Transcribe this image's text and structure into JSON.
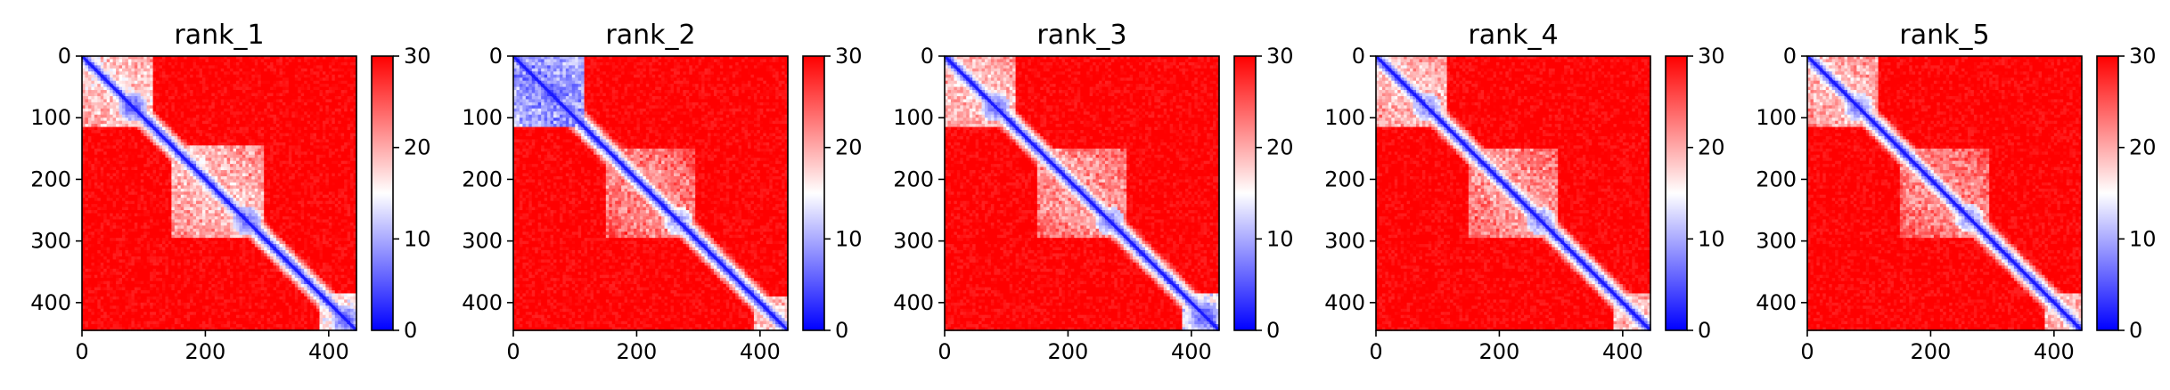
{
  "chart_data": [
    {
      "type": "heatmap",
      "title": "rank_1",
      "xlim": [
        0,
        445
      ],
      "ylim": [
        445,
        0
      ],
      "xticks": [
        "0",
        "200",
        "400"
      ],
      "yticks": [
        "0",
        "100",
        "200",
        "300",
        "400"
      ],
      "colorbar": {
        "min": 0,
        "max": 30,
        "ticks": [
          "0",
          "10",
          "20",
          "30"
        ],
        "colormap": "bwr"
      },
      "blocks": [
        [
          0,
          110,
          14
        ],
        [
          145,
          290,
          15
        ],
        [
          385,
          445,
          12
        ]
      ],
      "hotspots": [
        [
          80,
          80,
          4
        ],
        [
          265,
          265,
          5
        ],
        [
          425,
          425,
          4
        ]
      ]
    },
    {
      "type": "heatmap",
      "title": "rank_2",
      "xlim": [
        0,
        445
      ],
      "ylim": [
        445,
        0
      ],
      "xticks": [
        "0",
        "200",
        "400"
      ],
      "yticks": [
        "0",
        "100",
        "200",
        "300",
        "400"
      ],
      "colorbar": {
        "min": 0,
        "max": 30,
        "ticks": [
          "0",
          "10",
          "20",
          "30"
        ],
        "colormap": "bwr"
      },
      "blocks": [
        [
          0,
          110,
          5
        ],
        [
          150,
          290,
          18
        ],
        [
          390,
          445,
          15
        ]
      ],
      "hotspots": [
        [
          60,
          60,
          3
        ],
        [
          265,
          265,
          7
        ]
      ]
    },
    {
      "type": "heatmap",
      "title": "rank_3",
      "xlim": [
        0,
        445
      ],
      "ylim": [
        445,
        0
      ],
      "xticks": [
        "0",
        "200",
        "400"
      ],
      "yticks": [
        "0",
        "100",
        "200",
        "300",
        "400"
      ],
      "colorbar": {
        "min": 0,
        "max": 30,
        "ticks": [
          "0",
          "10",
          "20",
          "30"
        ],
        "colormap": "bwr"
      },
      "blocks": [
        [
          0,
          110,
          15
        ],
        [
          150,
          290,
          17
        ],
        [
          385,
          445,
          10
        ]
      ],
      "hotspots": [
        [
          80,
          80,
          5
        ],
        [
          265,
          265,
          6
        ],
        [
          420,
          420,
          3
        ]
      ]
    },
    {
      "type": "heatmap",
      "title": "rank_4",
      "xlim": [
        0,
        445
      ],
      "ylim": [
        445,
        0
      ],
      "xticks": [
        "0",
        "200",
        "400"
      ],
      "yticks": [
        "0",
        "100",
        "200",
        "300",
        "400"
      ],
      "colorbar": {
        "min": 0,
        "max": 30,
        "ticks": [
          "0",
          "10",
          "20",
          "30"
        ],
        "colormap": "bwr"
      },
      "blocks": [
        [
          0,
          110,
          15
        ],
        [
          150,
          290,
          17
        ],
        [
          385,
          445,
          15
        ]
      ],
      "hotspots": [
        [
          80,
          80,
          6
        ],
        [
          265,
          265,
          6
        ]
      ]
    },
    {
      "type": "heatmap",
      "title": "rank_5",
      "xlim": [
        0,
        445
      ],
      "ylim": [
        445,
        0
      ],
      "xticks": [
        "0",
        "200",
        "400"
      ],
      "yticks": [
        "0",
        "100",
        "200",
        "300",
        "400"
      ],
      "colorbar": {
        "min": 0,
        "max": 30,
        "ticks": [
          "0",
          "10",
          "20",
          "30"
        ],
        "colormap": "bwr"
      },
      "blocks": [
        [
          0,
          110,
          15
        ],
        [
          150,
          290,
          18
        ],
        [
          385,
          445,
          15
        ]
      ],
      "hotspots": [
        [
          80,
          80,
          6
        ],
        [
          260,
          260,
          7
        ]
      ]
    }
  ],
  "colors": {
    "low": "#0000ff",
    "mid": "#ffffff",
    "high": "#ff0000"
  }
}
